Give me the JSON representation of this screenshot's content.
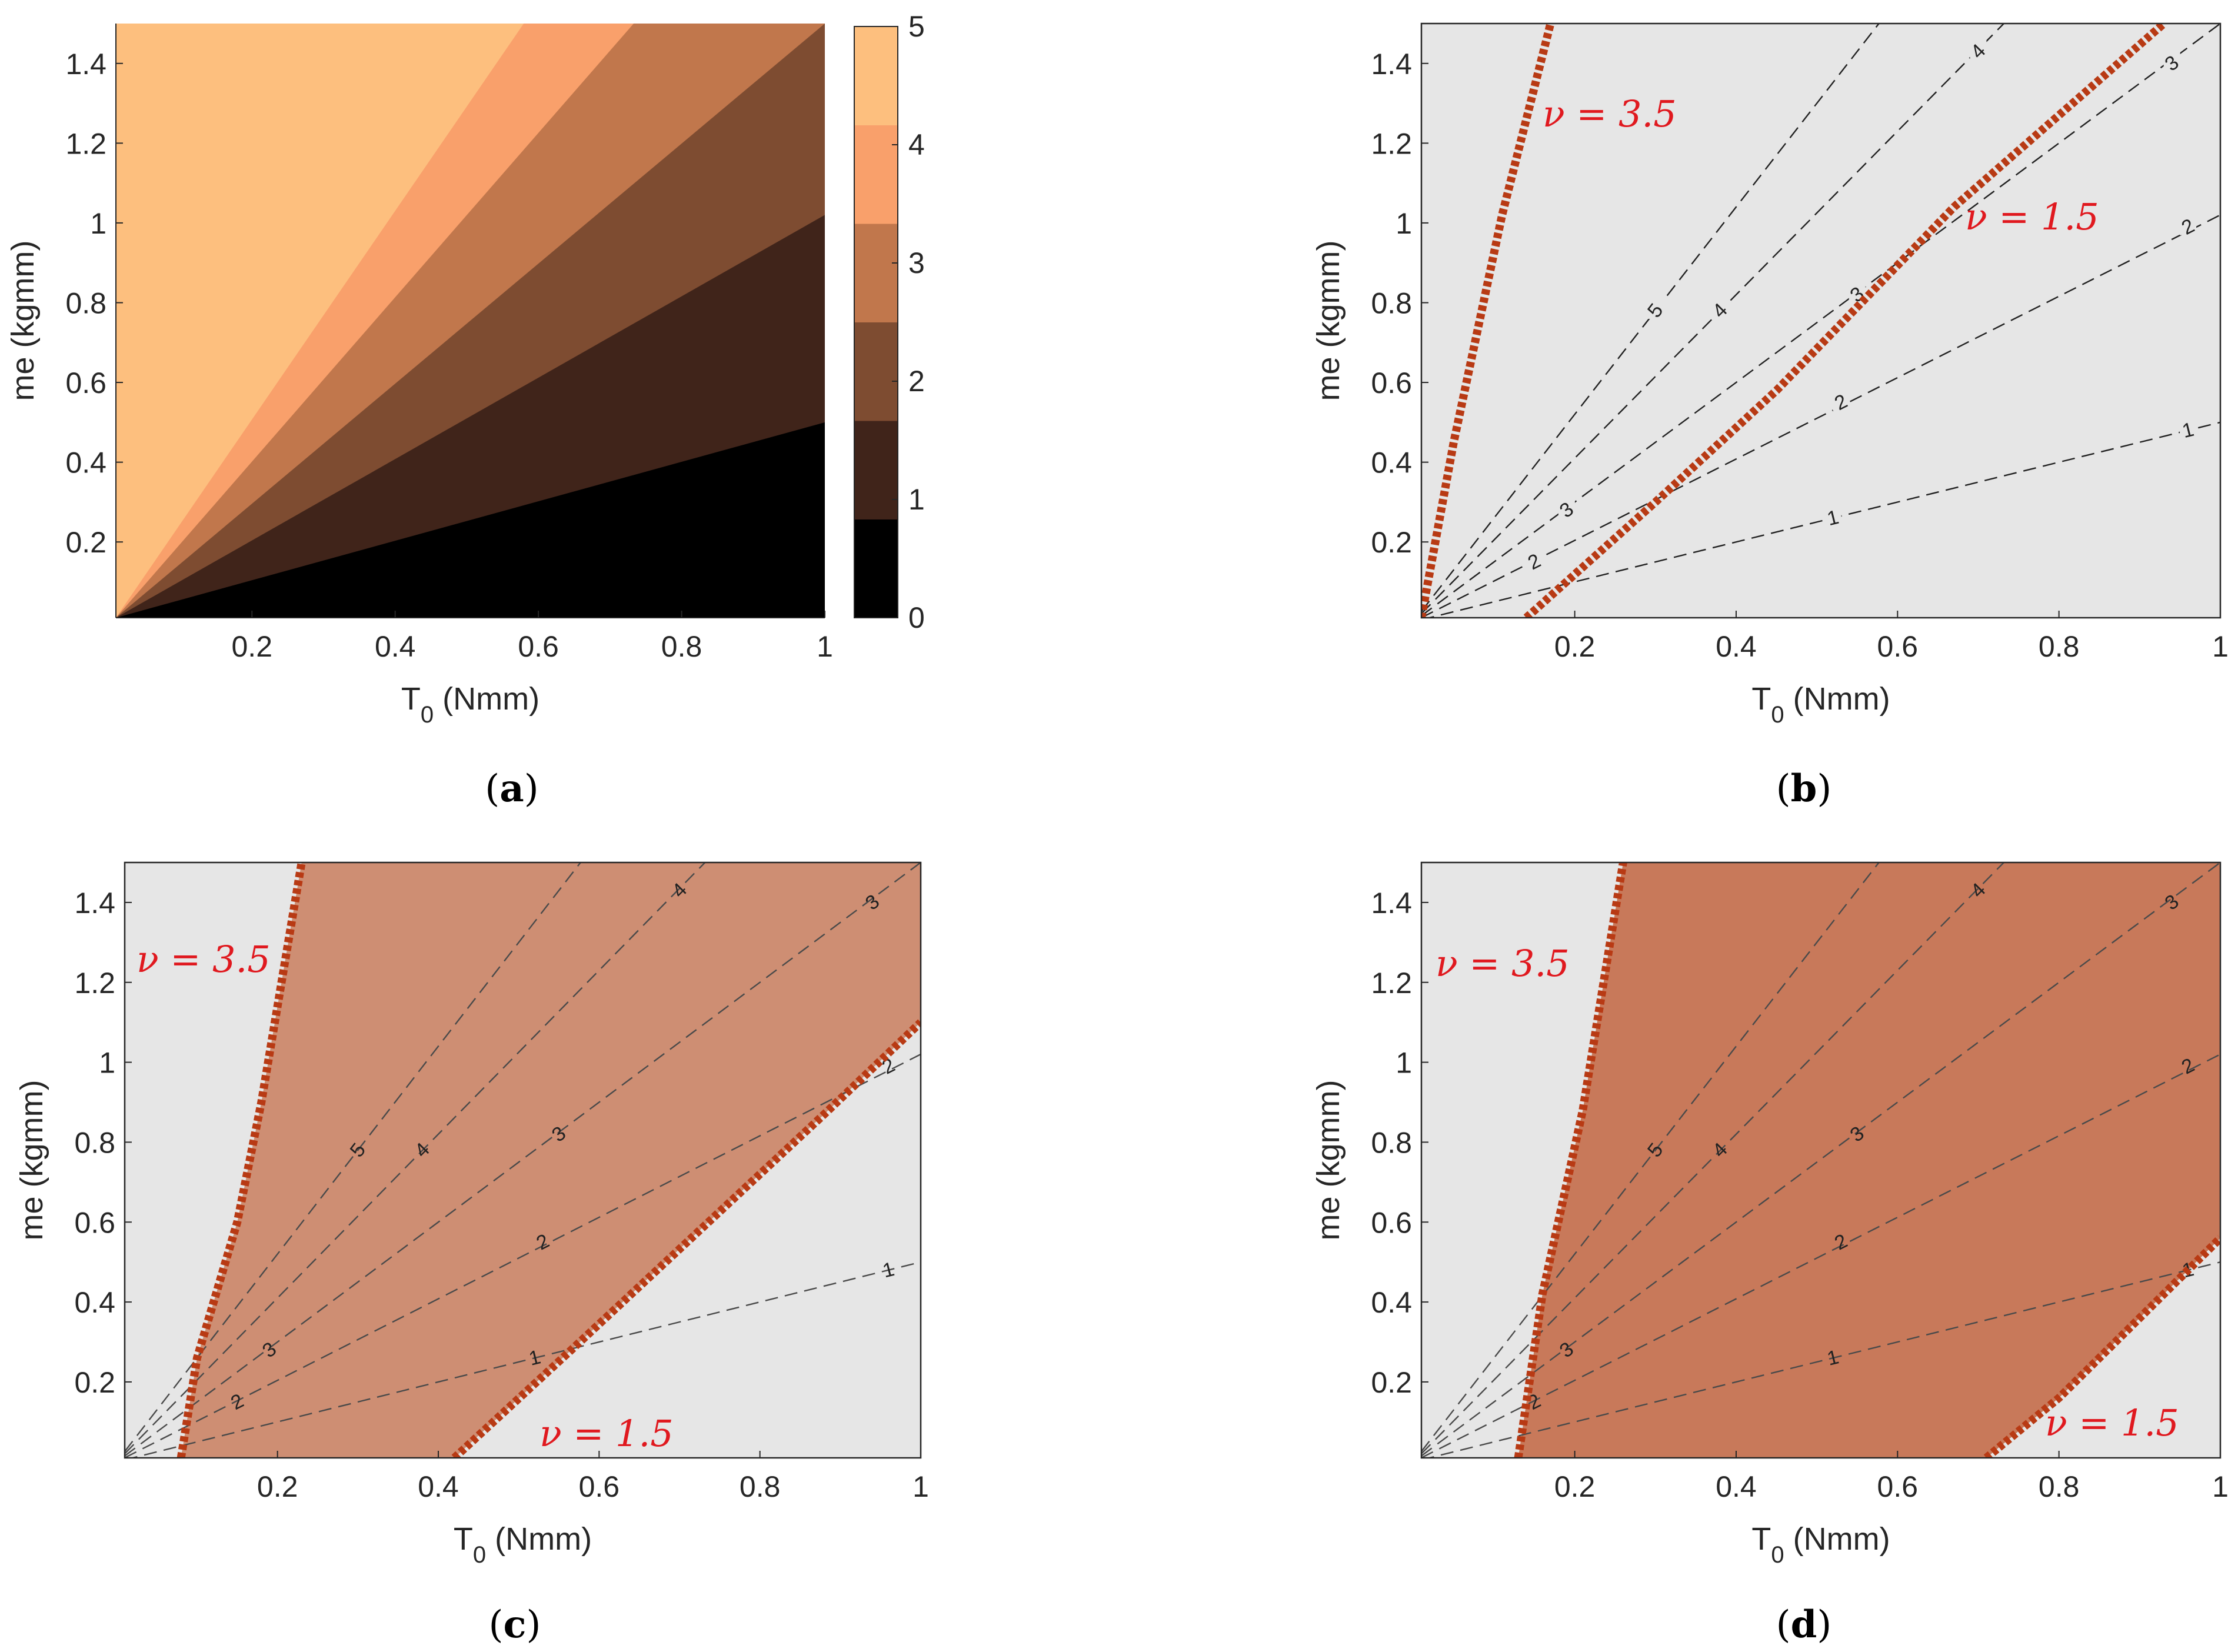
{
  "colors": {
    "panel_bg": "#e6e6e6",
    "boundary": "#b83a14",
    "annotation": "#e0191f",
    "feasible_c": "#ce8e73",
    "feasible_d": "#c8795a",
    "contour": "#333333",
    "colormap": [
      "#000000",
      "#40241a",
      "#7e4c31",
      "#c1774c",
      "#f9a06b",
      "#fdbf7e"
    ]
  },
  "chart_data": [
    {
      "panel": "a",
      "type": "heatmap",
      "caption_letter": "a",
      "xlabel_main": "T",
      "xlabel_sub": "0",
      "xlabel_unit": " (Nmm)",
      "ylabel": "me (kgmm)",
      "xlim": [
        0.01,
        1
      ],
      "ylim": [
        0.01,
        1.5
      ],
      "xticks": [
        "0.2",
        "0.4",
        "0.6",
        "0.8",
        "1"
      ],
      "yticks": [
        "0.2",
        "0.4",
        "0.6",
        "0.8",
        "1",
        "1.2",
        "1.4"
      ],
      "colorbar_ticks": [
        "0",
        "1",
        "2",
        "3",
        "4",
        "5"
      ],
      "colorbar_range": [
        0,
        5
      ],
      "bands": [
        {
          "level": 0,
          "upper_slope": 0.5
        },
        {
          "level": 1,
          "upper_slope": 1.02
        },
        {
          "level": 2,
          "upper_slope": 1.5
        },
        {
          "level": 3,
          "upper_slope": 2.05
        },
        {
          "level": 4,
          "upper_slope": 2.6
        },
        {
          "level": 5,
          "upper_slope": 100
        }
      ]
    },
    {
      "panel": "b",
      "type": "line",
      "caption_letter": "b",
      "xlabel_main": "T",
      "xlabel_sub": "0",
      "xlabel_unit": " (Nmm)",
      "ylabel": "me (kgmm)",
      "xlim": [
        0.01,
        1
      ],
      "ylim": [
        0.01,
        1.5
      ],
      "xticks": [
        "0.2",
        "0.4",
        "0.6",
        "0.8",
        "1"
      ],
      "yticks": [
        "0.2",
        "0.4",
        "0.6",
        "0.8",
        "1",
        "1.2",
        "1.4"
      ],
      "contours": [
        {
          "level": "1",
          "slope": 0.5,
          "labels": [
            [
              0.52,
              0.26
            ],
            [
              0.96,
              0.48
            ]
          ]
        },
        {
          "level": "2",
          "slope": 1.02,
          "labels": [
            [
              0.15,
              0.15
            ],
            [
              0.53,
              0.55
            ],
            [
              0.96,
              0.99
            ]
          ]
        },
        {
          "level": "3",
          "slope": 1.5,
          "labels": [
            [
              0.19,
              0.28
            ],
            [
              0.55,
              0.82
            ],
            [
              0.94,
              1.4
            ]
          ]
        },
        {
          "level": "4",
          "slope": 2.05,
          "labels": [
            [
              0.38,
              0.78
            ],
            [
              0.7,
              1.43
            ]
          ]
        },
        {
          "level": "5",
          "slope": 2.6,
          "labels": [
            [
              0.3,
              0.78
            ]
          ]
        }
      ],
      "boundaries": [
        {
          "nu": "3.5",
          "points": [
            [
              0.01,
              0.01
            ],
            [
              0.05,
              0.45
            ],
            [
              0.11,
              1.02
            ],
            [
              0.17,
              1.5
            ]
          ]
        },
        {
          "nu": "1.5",
          "points": [
            [
              0.14,
              0.01
            ],
            [
              0.3,
              0.3
            ],
            [
              0.45,
              0.58
            ],
            [
              0.67,
              1.04
            ],
            [
              0.93,
              1.5
            ]
          ]
        }
      ],
      "annotations": [
        "ν = 3.5",
        "ν = 1.5"
      ]
    },
    {
      "panel": "c",
      "type": "line",
      "caption_letter": "c",
      "xlabel_main": "T",
      "xlabel_sub": "0",
      "xlabel_unit": " (Nmm)",
      "ylabel": "me (kgmm)",
      "xlim": [
        0.01,
        1
      ],
      "ylim": [
        0.01,
        1.5
      ],
      "xticks": [
        "0.2",
        "0.4",
        "0.6",
        "0.8",
        "1"
      ],
      "yticks": [
        "0.2",
        "0.4",
        "0.6",
        "0.8",
        "1",
        "1.2",
        "1.4"
      ],
      "contours": [
        {
          "level": "1",
          "slope": 0.5,
          "labels": [
            [
              0.52,
              0.26
            ],
            [
              0.96,
              0.48
            ]
          ]
        },
        {
          "level": "2",
          "slope": 1.02,
          "labels": [
            [
              0.15,
              0.15
            ],
            [
              0.53,
              0.55
            ],
            [
              0.96,
              0.99
            ]
          ]
        },
        {
          "level": "3",
          "slope": 1.5,
          "labels": [
            [
              0.19,
              0.28
            ],
            [
              0.55,
              0.82
            ],
            [
              0.94,
              1.4
            ]
          ]
        },
        {
          "level": "4",
          "slope": 2.05,
          "labels": [
            [
              0.38,
              0.78
            ],
            [
              0.7,
              1.43
            ]
          ]
        },
        {
          "level": "5",
          "slope": 2.6,
          "labels": [
            [
              0.3,
              0.78
            ]
          ]
        }
      ],
      "boundaries": [
        {
          "nu": "3.5",
          "points": [
            [
              0.08,
              0.01
            ],
            [
              0.1,
              0.26
            ],
            [
              0.15,
              0.6
            ],
            [
              0.18,
              0.9
            ],
            [
              0.23,
              1.5
            ]
          ]
        },
        {
          "nu": "1.5",
          "points": [
            [
              0.42,
              0.01
            ],
            [
              0.56,
              0.27
            ],
            [
              0.72,
              0.57
            ],
            [
              0.88,
              0.87
            ],
            [
              1.0,
              1.1
            ]
          ]
        }
      ],
      "annotations": [
        "ν = 3.5",
        "ν = 1.5"
      ]
    },
    {
      "panel": "d",
      "type": "line",
      "caption_letter": "d",
      "xlabel_main": "T",
      "xlabel_sub": "0",
      "xlabel_unit": " (Nmm)",
      "ylabel": "me (kgmm)",
      "xlim": [
        0.01,
        1
      ],
      "ylim": [
        0.01,
        1.5
      ],
      "xticks": [
        "0.2",
        "0.4",
        "0.6",
        "0.8",
        "1"
      ],
      "yticks": [
        "0.2",
        "0.4",
        "0.6",
        "0.8",
        "1",
        "1.2",
        "1.4"
      ],
      "contours": [
        {
          "level": "1",
          "slope": 0.5,
          "labels": [
            [
              0.52,
              0.26
            ],
            [
              0.96,
              0.48
            ]
          ]
        },
        {
          "level": "2",
          "slope": 1.02,
          "labels": [
            [
              0.15,
              0.15
            ],
            [
              0.53,
              0.55
            ],
            [
              0.96,
              0.99
            ]
          ]
        },
        {
          "level": "3",
          "slope": 1.5,
          "labels": [
            [
              0.19,
              0.28
            ],
            [
              0.55,
              0.82
            ],
            [
              0.94,
              1.4
            ]
          ]
        },
        {
          "level": "4",
          "slope": 2.05,
          "labels": [
            [
              0.38,
              0.78
            ],
            [
              0.7,
              1.43
            ]
          ]
        },
        {
          "level": "5",
          "slope": 2.6,
          "labels": [
            [
              0.3,
              0.78
            ]
          ]
        }
      ],
      "boundaries": [
        {
          "nu": "3.5",
          "points": [
            [
              0.13,
              0.01
            ],
            [
              0.16,
              0.42
            ],
            [
              0.21,
              0.88
            ],
            [
              0.26,
              1.5
            ]
          ]
        },
        {
          "nu": "1.5",
          "points": [
            [
              0.71,
              0.01
            ],
            [
              0.8,
              0.16
            ],
            [
              0.9,
              0.36
            ],
            [
              1.0,
              0.56
            ]
          ]
        }
      ],
      "annotations": [
        "ν = 3.5",
        "ν = 1.5"
      ]
    }
  ]
}
